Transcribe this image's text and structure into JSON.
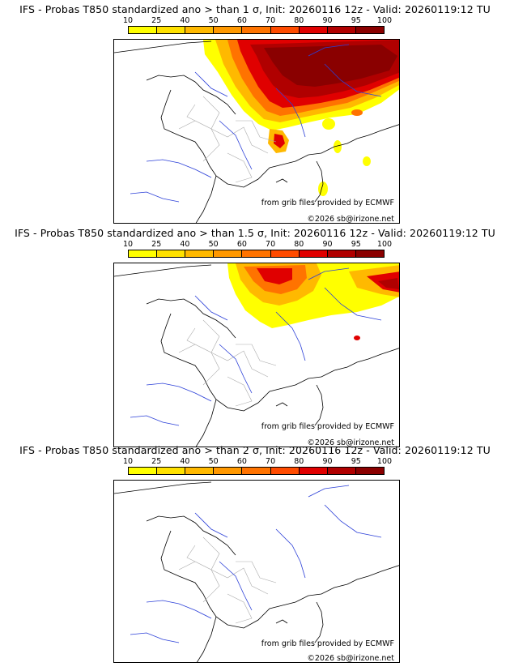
{
  "colorbar": {
    "tick_labels": [
      "10",
      "25",
      "40",
      "50",
      "60",
      "70",
      "80",
      "90",
      "95",
      "100"
    ],
    "colors": [
      "#ffff00",
      "#ffe100",
      "#ffb900",
      "#ff9800",
      "#ff7300",
      "#ff4b00",
      "#e00000",
      "#b00000",
      "#8a0000"
    ]
  },
  "panels": [
    {
      "title": "IFS - Probas T850  standardized ano > than 1 σ, Init: 20260116 12z - Valid: 20260119:12 TU",
      "credit_source": "from grib files provided by ECMWF",
      "credit_copyright": "©2026 sb@irizone.net"
    },
    {
      "title": "IFS - Probas T850  standardized ano > than 1.5 σ, Init: 20260116 12z - Valid: 20260119:12 TU",
      "credit_source": "from grib files provided by ECMWF",
      "credit_copyright": "©2026 sb@irizone.net"
    },
    {
      "title": "IFS - Probas T850  standardized ano > than 2 σ, Init: 20260116 12z - Valid: 20260119:12 TU",
      "credit_source": "from grib files provided by ECMWF",
      "credit_copyright": "©2026 sb@irizone.net"
    }
  ]
}
